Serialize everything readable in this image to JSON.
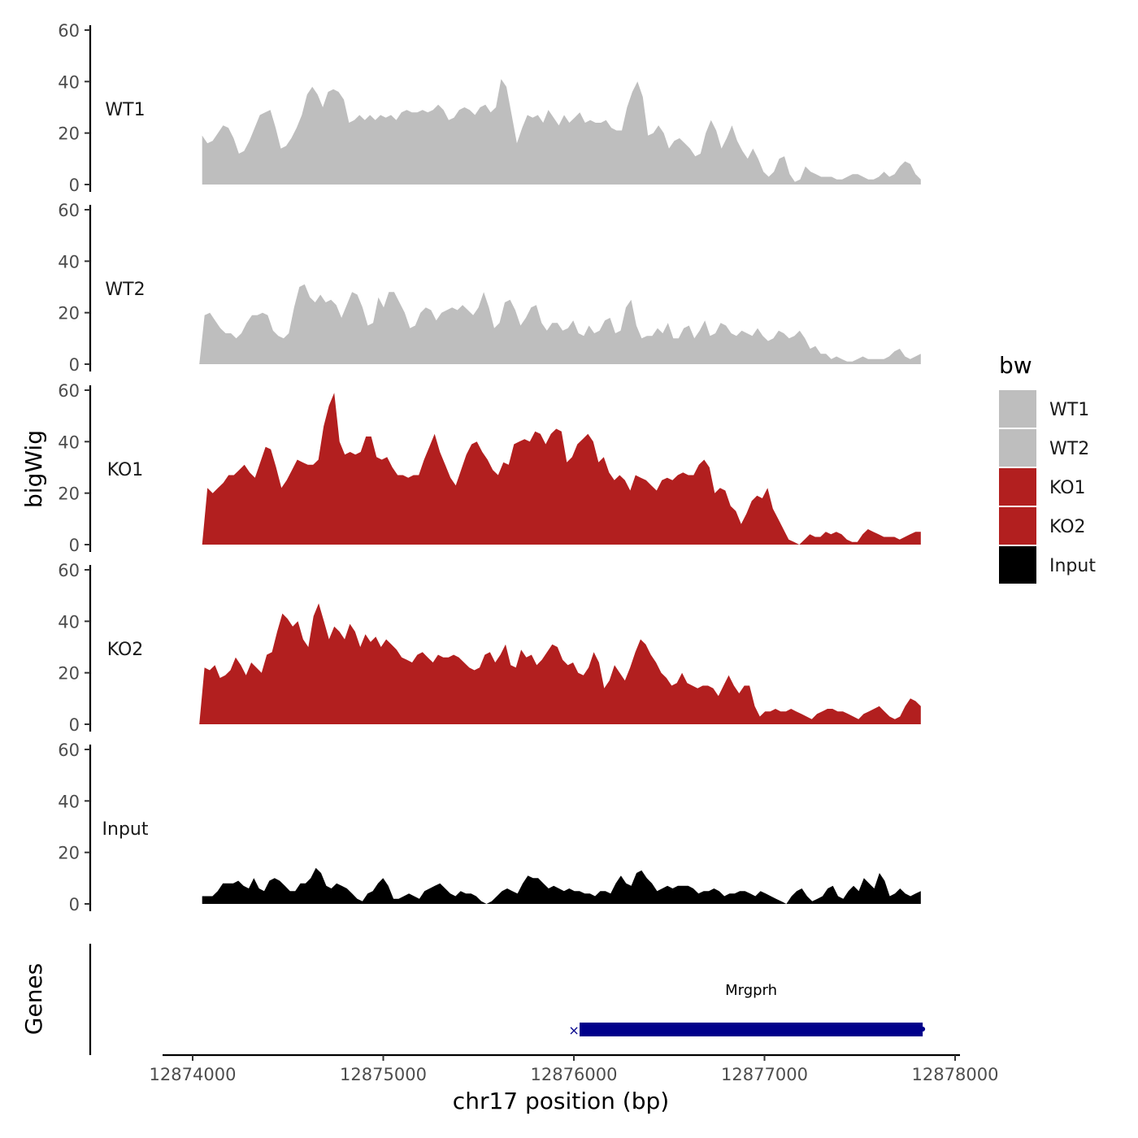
{
  "chart_data": {
    "type": "area",
    "x_axis": {
      "title": "chr17 position (bp)",
      "range": [
        12873850,
        12878000
      ],
      "ticks": [
        12874000,
        12875000,
        12876000,
        12877000,
        12878000
      ],
      "tick_labels": [
        "12874000",
        "12875000",
        "12876000",
        "12877000",
        "12878000"
      ]
    },
    "y_axis": {
      "title": "bigWig",
      "range": [
        0,
        60
      ],
      "ticks": [
        0,
        20,
        40,
        60
      ],
      "tick_labels": [
        "0",
        "20",
        "40",
        "60"
      ]
    },
    "legend": {
      "title": "bw",
      "position": "right",
      "items": [
        {
          "label": "WT1",
          "color": "#bebebe"
        },
        {
          "label": "WT2",
          "color": "#bebebe"
        },
        {
          "label": "KO1",
          "color": "#b21f1f"
        },
        {
          "label": "KO2",
          "color": "#b21f1f"
        },
        {
          "label": "Input",
          "color": "#000000"
        }
      ]
    },
    "series": [
      {
        "name": "WT1",
        "color": "#bebebe",
        "x_start": 12874050,
        "x_end": 12877820,
        "values": [
          19,
          16,
          17,
          20,
          23,
          22,
          18,
          12,
          13,
          17,
          22,
          27,
          28,
          29,
          22,
          14,
          15,
          18,
          22,
          27,
          35,
          38,
          35,
          30,
          36,
          37,
          36,
          33,
          24,
          25,
          27,
          25,
          27,
          25,
          27,
          26,
          27,
          25,
          28,
          29,
          28,
          28,
          29,
          28,
          29,
          31,
          29,
          25,
          26,
          29,
          30,
          29,
          27,
          30,
          31,
          28,
          30,
          41,
          38,
          27,
          16,
          22,
          27,
          26,
          27,
          24,
          29,
          26,
          23,
          27,
          24,
          26,
          28,
          24,
          25,
          24,
          24,
          25,
          22,
          21,
          21,
          30,
          36,
          40,
          34,
          19,
          20,
          23,
          20,
          14,
          17,
          18,
          16,
          14,
          11,
          12,
          20,
          25,
          21,
          14,
          18,
          23,
          17,
          13,
          10,
          14,
          10,
          5,
          3,
          5,
          10,
          11,
          4,
          1,
          2,
          7,
          5,
          4,
          3,
          3,
          3,
          2,
          2,
          3,
          4,
          4,
          3,
          2,
          2,
          3,
          5,
          3,
          4,
          7,
          9,
          8,
          4,
          2
        ]
      },
      {
        "name": "WT2",
        "color": "#bebebe",
        "x_start": 12874035,
        "x_end": 12877820,
        "values": [
          0,
          19,
          20,
          17,
          14,
          12,
          12,
          10,
          12,
          16,
          19,
          19,
          20,
          19,
          13,
          11,
          10,
          12,
          22,
          30,
          31,
          26,
          24,
          27,
          24,
          25,
          23,
          18,
          23,
          28,
          27,
          22,
          15,
          16,
          26,
          22,
          28,
          28,
          24,
          20,
          14,
          15,
          20,
          22,
          21,
          17,
          20,
          21,
          22,
          21,
          23,
          21,
          19,
          22,
          28,
          22,
          14,
          16,
          24,
          25,
          21,
          15,
          18,
          22,
          23,
          16,
          13,
          16,
          16,
          13,
          14,
          17,
          12,
          11,
          15,
          12,
          13,
          17,
          18,
          12,
          13,
          22,
          25,
          15,
          10,
          11,
          11,
          14,
          12,
          16,
          10,
          10,
          14,
          15,
          10,
          13,
          17,
          11,
          12,
          16,
          15,
          12,
          11,
          13,
          12,
          11,
          14,
          11,
          9,
          10,
          13,
          12,
          10,
          11,
          13,
          10,
          6,
          7,
          4,
          4,
          2,
          3,
          2,
          1,
          1,
          2,
          3,
          2,
          2,
          2,
          2,
          3,
          5,
          6,
          3,
          2,
          3,
          4
        ]
      },
      {
        "name": "KO1",
        "color": "#b21f1f",
        "x_start": 12874050,
        "x_end": 12877820,
        "values": [
          0,
          22,
          20,
          22,
          24,
          27,
          27,
          29,
          31,
          28,
          26,
          32,
          38,
          37,
          30,
          22,
          25,
          29,
          33,
          32,
          31,
          31,
          33,
          46,
          54,
          59,
          40,
          35,
          36,
          35,
          36,
          42,
          42,
          34,
          33,
          34,
          30,
          27,
          27,
          26,
          27,
          27,
          33,
          38,
          43,
          36,
          31,
          26,
          23,
          29,
          35,
          39,
          40,
          36,
          33,
          29,
          27,
          32,
          31,
          39,
          40,
          41,
          40,
          44,
          43,
          39,
          43,
          45,
          44,
          32,
          34,
          39,
          41,
          43,
          40,
          32,
          34,
          28,
          25,
          27,
          25,
          21,
          27,
          26,
          25,
          23,
          21,
          25,
          26,
          25,
          27,
          28,
          27,
          27,
          31,
          33,
          30,
          20,
          22,
          21,
          15,
          13,
          8,
          12,
          17,
          19,
          18,
          22,
          14,
          10,
          6,
          2,
          1,
          0,
          2,
          4,
          3,
          3,
          5,
          4,
          5,
          4,
          2,
          1,
          1,
          4,
          6,
          5,
          4,
          3,
          3,
          3,
          2,
          3,
          4,
          5,
          5
        ]
      },
      {
        "name": "KO2",
        "color": "#b21f1f",
        "x_start": 12874035,
        "x_end": 12877820,
        "values": [
          0,
          22,
          21,
          23,
          18,
          19,
          21,
          26,
          23,
          19,
          24,
          22,
          20,
          27,
          28,
          36,
          43,
          41,
          38,
          40,
          33,
          30,
          42,
          47,
          40,
          33,
          38,
          36,
          33,
          39,
          36,
          30,
          35,
          32,
          34,
          30,
          33,
          31,
          29,
          26,
          25,
          24,
          27,
          28,
          26,
          24,
          27,
          26,
          26,
          27,
          26,
          24,
          22,
          21,
          22,
          27,
          28,
          24,
          27,
          31,
          23,
          22,
          29,
          26,
          27,
          23,
          25,
          28,
          31,
          30,
          25,
          23,
          24,
          20,
          19,
          22,
          28,
          24,
          14,
          17,
          23,
          20,
          17,
          22,
          28,
          33,
          31,
          27,
          24,
          20,
          18,
          15,
          16,
          20,
          16,
          15,
          14,
          15,
          15,
          14,
          11,
          15,
          19,
          15,
          12,
          15,
          15,
          7,
          3,
          5,
          5,
          6,
          5,
          5,
          6,
          5,
          4,
          3,
          2,
          4,
          5,
          6,
          6,
          5,
          5,
          4,
          3,
          2,
          4,
          5,
          6,
          7,
          5,
          3,
          2,
          3,
          7,
          10,
          9,
          7
        ]
      },
      {
        "name": "Input",
        "color": "#000000",
        "x_start": 12874050,
        "x_end": 12877820,
        "values": [
          3,
          3,
          3,
          5,
          8,
          8,
          8,
          9,
          7,
          6,
          10,
          6,
          5,
          9,
          10,
          9,
          7,
          5,
          5,
          8,
          8,
          10,
          14,
          12,
          7,
          6,
          8,
          7,
          6,
          4,
          2,
          1,
          4,
          5,
          8,
          10,
          7,
          2,
          2,
          3,
          4,
          3,
          2,
          5,
          6,
          7,
          8,
          6,
          4,
          3,
          5,
          4,
          4,
          3,
          1,
          0,
          1,
          3,
          5,
          6,
          5,
          4,
          8,
          11,
          10,
          10,
          8,
          6,
          7,
          6,
          5,
          6,
          5,
          5,
          4,
          4,
          3,
          5,
          5,
          4,
          8,
          11,
          8,
          7,
          12,
          13,
          10,
          8,
          5,
          6,
          7,
          6,
          7,
          7,
          7,
          6,
          4,
          5,
          5,
          6,
          5,
          3,
          4,
          4,
          5,
          5,
          4,
          3,
          5,
          4,
          3,
          2,
          1,
          0,
          3,
          5,
          6,
          3,
          1,
          2,
          3,
          6,
          7,
          3,
          2,
          5,
          7,
          5,
          10,
          8,
          6,
          12,
          9,
          3,
          4,
          6,
          4,
          3,
          4,
          5
        ]
      }
    ],
    "panel_labels": [
      "WT1",
      "WT2",
      "KO1",
      "KO2",
      "Input"
    ],
    "genes_track": {
      "label": "Genes",
      "genes": [
        {
          "name": "Mrgprh",
          "start": 12876030,
          "end": 12877830,
          "color": "#00008b",
          "strand": "+"
        }
      ]
    }
  }
}
